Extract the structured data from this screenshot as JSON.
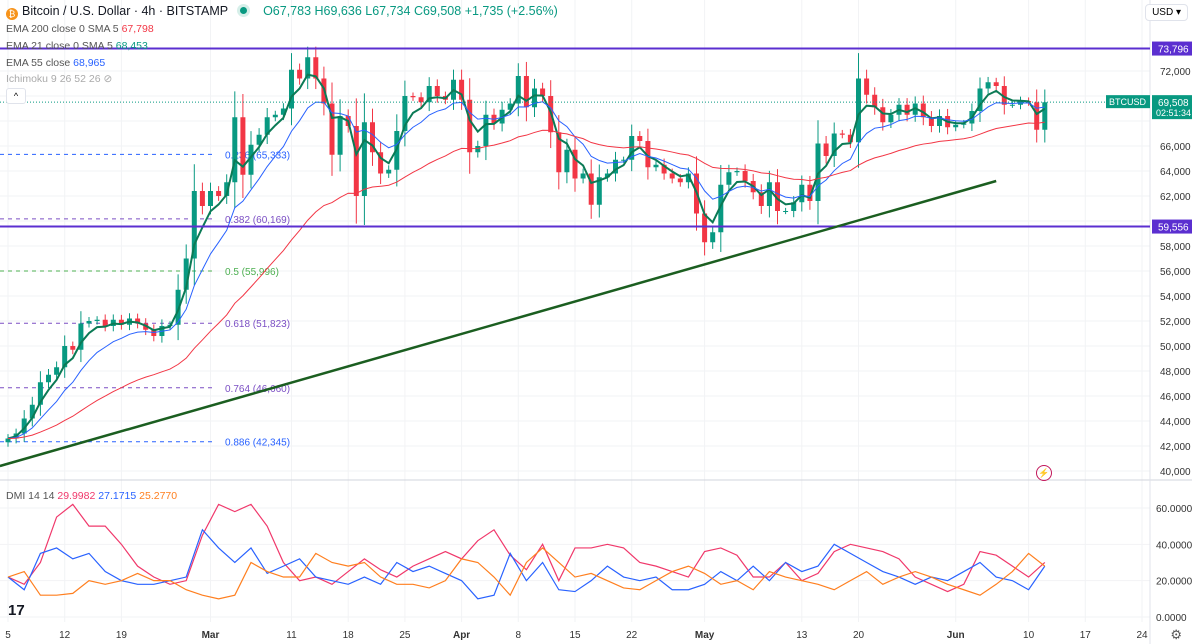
{
  "header": {
    "symbol": "Bitcoin / U.S. Dollar · 4h · BITSTAMP",
    "symbol_icon": "bitcoin-icon",
    "open": "O67,783",
    "high": "H69,636",
    "low": "L67,734",
    "close": "C69,508",
    "change": "+1,735 (+2.56%)"
  },
  "indicators": [
    {
      "label": "EMA 200 close 0 SMA 5",
      "value": "67,798",
      "color": "#f23645"
    },
    {
      "label": "EMA 21 close 0 SMA 5",
      "value": "68,453",
      "color": "#089981"
    },
    {
      "label": "EMA 55 close",
      "value": "68,965",
      "color": "#2962ff"
    },
    {
      "label": "Ichimoku 9 26 52 26",
      "value": "",
      "color": "#999999"
    }
  ],
  "currency": "USD",
  "price_label": {
    "symbol": "BTCUSD",
    "price": "69,508",
    "countdown": "02:51:34"
  },
  "dmi": {
    "label": "DMI 14 14",
    "adx": "29.9982",
    "plus_di": "27.1715",
    "minus_di": "25.2770"
  },
  "colors": {
    "up": "#089981",
    "down": "#f23645",
    "ema21": "#0b7a55",
    "ema55": "#2962ff",
    "ema200": "#f23645",
    "level": "#5b2fd0",
    "trend": "#1b5e20",
    "adx": "#f0386b",
    "plus_di": "#2962ff",
    "minus_di": "#ff7f1f"
  },
  "chart_data": [
    {
      "type": "candlestick",
      "title": "Bitcoin / U.S. Dollar · 4h · BITSTAMP",
      "start_date": "2024-02-05",
      "interval": "1 day (sampled)",
      "close": [
        42.6,
        43.0,
        44.2,
        45.3,
        47.1,
        47.7,
        48.3,
        50.0,
        49.7,
        51.8,
        52.0,
        52.1,
        51.6,
        52.1,
        51.7,
        52.2,
        51.8,
        51.3,
        50.8,
        51.6,
        51.7,
        54.5,
        57.0,
        62.4,
        61.2,
        62.4,
        62.0,
        63.1,
        68.3,
        63.7,
        66.1,
        66.9,
        68.3,
        68.5,
        69.0,
        72.1,
        71.4,
        73.1,
        71.4,
        69.4,
        65.3,
        68.4,
        67.6,
        62.0,
        67.9,
        65.5,
        63.8,
        64.1,
        67.2,
        70.0,
        69.9,
        69.5,
        70.8,
        70.0,
        69.7,
        71.3,
        69.7,
        65.5,
        66.0,
        68.5,
        67.8,
        68.9,
        69.4,
        71.6,
        69.1,
        70.6,
        70.0,
        67.1,
        63.9,
        65.7,
        63.4,
        63.8,
        61.3,
        63.5,
        63.8,
        64.9,
        64.9,
        66.8,
        66.4,
        64.3,
        64.5,
        63.8,
        63.4,
        63.1,
        63.8,
        60.6,
        58.3,
        59.1,
        62.9,
        63.9,
        64.0,
        63.2,
        62.3,
        61.2,
        63.1,
        60.8,
        60.8,
        61.5,
        62.9,
        61.6,
        66.2,
        65.2,
        67.0,
        66.9,
        66.3,
        71.4,
        70.1,
        69.1,
        67.9,
        68.5,
        69.3,
        68.5,
        69.4,
        68.3,
        67.6,
        68.4,
        67.5,
        67.7,
        67.8,
        68.8,
        70.6,
        71.1,
        70.8,
        69.3,
        69.3,
        69.6,
        69.5,
        67.3,
        69.5
      ],
      "close_unit": "thousand USD",
      "y_ticks": [
        "72,000",
        "70,000",
        "68,000",
        "66,000",
        "64,000",
        "62,000",
        "60,000",
        "58,000",
        "56,000",
        "54,000",
        "52,000",
        "50,000",
        "48,000",
        "46,000",
        "44,000",
        "42,000",
        "40,000"
      ],
      "ylim": [
        40000,
        72000
      ],
      "x_ticks": [
        {
          "label": "5",
          "date": "2024-02-05"
        },
        {
          "label": "12",
          "date": "2024-02-12"
        },
        {
          "label": "19",
          "date": "2024-02-19"
        },
        {
          "label": "Mar",
          "date": "2024-03-01"
        },
        {
          "label": "11",
          "date": "2024-03-11"
        },
        {
          "label": "18",
          "date": "2024-03-18"
        },
        {
          "label": "25",
          "date": "2024-03-25"
        },
        {
          "label": "Apr",
          "date": "2024-04-01"
        },
        {
          "label": "8",
          "date": "2024-04-08"
        },
        {
          "label": "15",
          "date": "2024-04-15"
        },
        {
          "label": "22",
          "date": "2024-04-22"
        },
        {
          "label": "May",
          "date": "2024-05-01"
        },
        {
          "label": "13",
          "date": "2024-05-13"
        },
        {
          "label": "20",
          "date": "2024-05-20"
        },
        {
          "label": "Jun",
          "date": "2024-06-01"
        },
        {
          "label": "10",
          "date": "2024-06-10"
        },
        {
          "label": "17",
          "date": "2024-06-17"
        },
        {
          "label": "24",
          "date": "2024-06-24"
        }
      ],
      "horizontal_levels": [
        {
          "value": 73796,
          "label": "73,796"
        },
        {
          "value": 59556,
          "label": "59,556"
        }
      ],
      "last_price": 69508,
      "fib_levels": [
        {
          "ratio": "0.236",
          "value": 65333,
          "label": "0.236 (65,333)",
          "color": "#2962ff"
        },
        {
          "ratio": "0.382",
          "value": 60169,
          "label": "0.382 (60,169)",
          "color": "#7b4fc4"
        },
        {
          "ratio": "0.5",
          "value": 55996,
          "label": "0.5 (55,996)",
          "color": "#4caf50"
        },
        {
          "ratio": "0.618",
          "value": 51823,
          "label": "0.618 (51,823)",
          "color": "#7b4fc4"
        },
        {
          "ratio": "0.764",
          "value": 46660,
          "label": "0.764 (46,660)",
          "color": "#7b4fc4"
        },
        {
          "ratio": "0.886",
          "value": 42345,
          "label": "0.886 (42,345)",
          "color": "#2962ff"
        }
      ],
      "trendline": [
        {
          "date": "2024-02-04",
          "value": 40400
        },
        {
          "date": "2024-06-06",
          "value": 63200
        }
      ]
    },
    {
      "type": "line",
      "title": "DMI 14 14",
      "start_date": "2024-02-05",
      "interval": "2 days (sampled)",
      "y_ticks": [
        "60.0000",
        "40.0000",
        "20.0000",
        "0.0000"
      ],
      "ylim": [
        0,
        60
      ],
      "series": [
        {
          "name": "ADX",
          "values": [
            22,
            18,
            30,
            55,
            62,
            50,
            50,
            40,
            28,
            22,
            18,
            20,
            45,
            62,
            58,
            62,
            50,
            30,
            20,
            22,
            18,
            25,
            32,
            26,
            22,
            28,
            32,
            36,
            32,
            42,
            48,
            34,
            26,
            40,
            20,
            38,
            38,
            40,
            38,
            30,
            28,
            25,
            22,
            36,
            38,
            34,
            22,
            22,
            30,
            20,
            24,
            36,
            40,
            38,
            36,
            32,
            22,
            18,
            14,
            18,
            36,
            34,
            28,
            22,
            30
          ]
        },
        {
          "name": "+DI",
          "values": [
            22,
            15,
            35,
            38,
            32,
            35,
            25,
            20,
            18,
            18,
            20,
            22,
            48,
            38,
            30,
            38,
            24,
            28,
            32,
            22,
            20,
            18,
            22,
            18,
            30,
            25,
            28,
            24,
            20,
            10,
            12,
            35,
            20,
            30,
            15,
            14,
            20,
            28,
            22,
            20,
            22,
            15,
            15,
            18,
            25,
            20,
            28,
            20,
            30,
            25,
            28,
            40,
            35,
            30,
            25,
            22,
            18,
            22,
            20,
            25,
            30,
            22,
            20,
            15,
            28
          ]
        },
        {
          "name": "-DI",
          "values": [
            22,
            25,
            12,
            12,
            13,
            20,
            18,
            20,
            24,
            20,
            20,
            15,
            12,
            10,
            12,
            30,
            25,
            22,
            22,
            35,
            30,
            28,
            30,
            22,
            18,
            18,
            16,
            20,
            32,
            30,
            22,
            12,
            30,
            38,
            30,
            22,
            24,
            20,
            16,
            15,
            20,
            25,
            28,
            24,
            18,
            20,
            15,
            25,
            22,
            20,
            18,
            15,
            20,
            25,
            18,
            22,
            25,
            22,
            18,
            15,
            12,
            18,
            25,
            35,
            28
          ]
        }
      ]
    }
  ]
}
